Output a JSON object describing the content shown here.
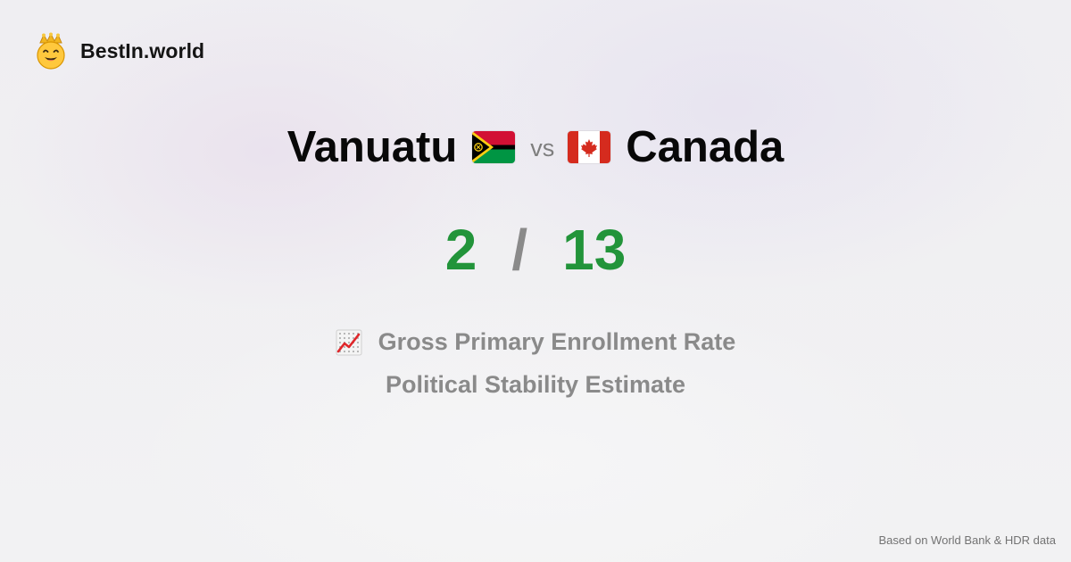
{
  "brand": {
    "name": "BestIn.world",
    "logo_icon": "crowned-smiley-icon"
  },
  "comparison": {
    "left_country": "Vanuatu",
    "left_flag": "vanuatu-flag-icon",
    "vs_label": "vs",
    "right_country": "Canada",
    "right_flag": "canada-flag-icon"
  },
  "score": {
    "left": "2",
    "separator": "/",
    "right": "13"
  },
  "metrics": [
    {
      "icon": "chart-increasing-icon",
      "label": "Gross Primary Enrollment Rate"
    },
    {
      "label": "Political Stability Estimate"
    }
  ],
  "footer": {
    "source_note": "Based on World Bank & HDR data"
  },
  "colors": {
    "score_green": "#22943a",
    "muted_text": "#8a8a8a",
    "heading_text": "#080808",
    "background": "#f1f1f2"
  }
}
